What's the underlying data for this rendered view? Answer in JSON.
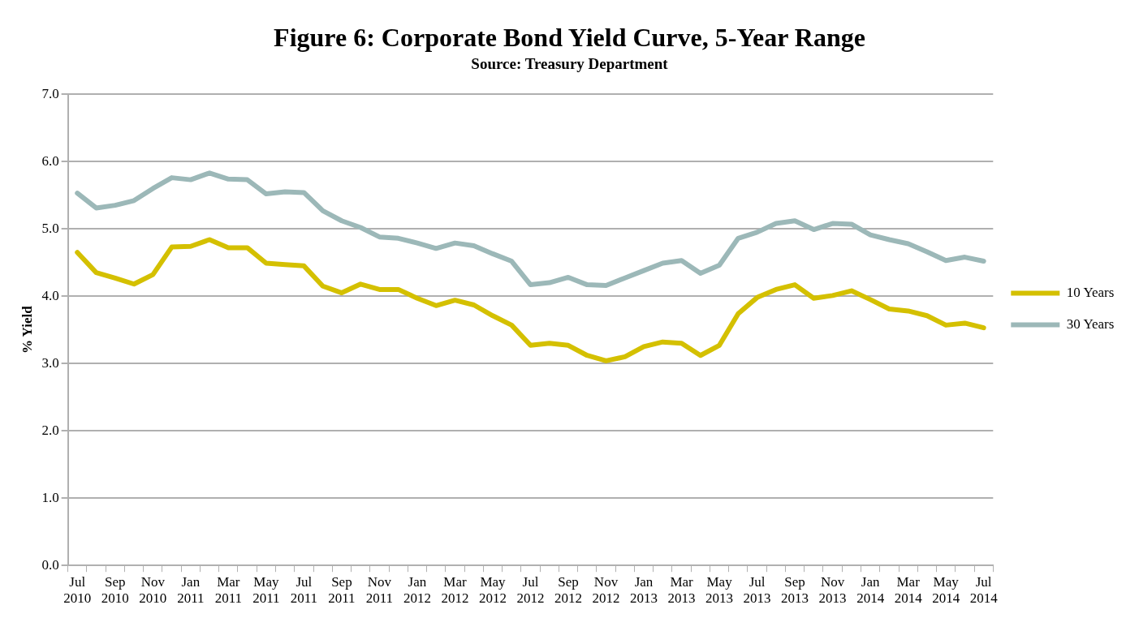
{
  "chart_data": {
    "type": "line",
    "title": "Figure 6: Corporate Bond Yield Curve, 5-Year Range",
    "subtitle": "Source: Treasury Department",
    "ylabel": "% Yield",
    "categories": [
      "Jul 2010",
      null,
      "Sep 2010",
      null,
      "Nov 2010",
      null,
      "Jan 2011",
      null,
      "Mar 2011",
      null,
      "May 2011",
      null,
      "Jul 2011",
      null,
      "Sep 2011",
      null,
      "Nov 2011",
      null,
      "Jan 2012",
      null,
      "Mar 2012",
      null,
      "May 2012",
      null,
      "Jul 2012",
      null,
      "Sep 2012",
      null,
      "Nov 2012",
      null,
      "Jan 2013",
      null,
      "Mar 2013",
      null,
      "May 2013",
      null,
      "Jul 2013",
      null,
      "Sep 2013",
      null,
      "Nov 2013",
      null,
      "Jan 2014",
      null,
      "Mar 2014",
      null,
      "May 2014",
      null,
      "Jul 2014"
    ],
    "series": [
      {
        "name": "10 Years",
        "color": "#d4c000",
        "values": [
          4.65,
          4.35,
          4.27,
          4.18,
          4.32,
          4.73,
          4.74,
          4.84,
          4.72,
          4.72,
          4.49,
          4.47,
          4.45,
          4.15,
          4.05,
          4.18,
          4.1,
          4.1,
          3.97,
          3.86,
          3.94,
          3.87,
          3.71,
          3.57,
          3.27,
          3.3,
          3.27,
          3.12,
          3.04,
          3.1,
          3.25,
          3.32,
          3.3,
          3.12,
          3.27,
          3.74,
          3.98,
          4.1,
          4.17,
          3.97,
          4.01,
          4.08,
          3.95,
          3.81,
          3.78,
          3.71,
          3.57,
          3.6,
          3.53
        ]
      },
      {
        "name": "30 Years",
        "color": "#9cb8b8",
        "values": [
          5.53,
          5.31,
          5.35,
          5.42,
          5.6,
          5.76,
          5.73,
          5.83,
          5.74,
          5.73,
          5.52,
          5.55,
          5.54,
          5.27,
          5.12,
          5.02,
          4.88,
          4.86,
          4.79,
          4.71,
          4.79,
          4.75,
          4.63,
          4.52,
          4.17,
          4.2,
          4.28,
          4.17,
          4.16,
          4.27,
          4.38,
          4.49,
          4.53,
          4.34,
          4.46,
          4.86,
          4.95,
          5.08,
          5.12,
          4.99,
          5.08,
          5.07,
          4.91,
          4.84,
          4.78,
          4.66,
          4.53,
          4.58,
          4.52
        ]
      }
    ],
    "ylim": [
      0,
      7
    ],
    "yticks": [
      {
        "value": 0,
        "label": "0.0"
      },
      {
        "value": 1,
        "label": "1.0"
      },
      {
        "value": 2,
        "label": "2.0"
      },
      {
        "value": 3,
        "label": "3.0"
      },
      {
        "value": 4,
        "label": "4.0"
      },
      {
        "value": 5,
        "label": "5.0"
      },
      {
        "value": 6,
        "label": "6.0"
      },
      {
        "value": 7,
        "label": "7.0"
      }
    ],
    "grid": "y",
    "legend": "right",
    "marker": "none",
    "line_style": "solid"
  }
}
